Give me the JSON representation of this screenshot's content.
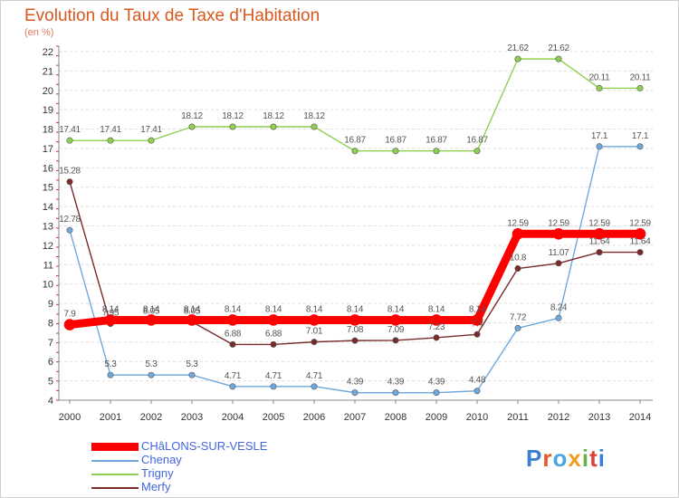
{
  "title": "Evolution du Taux de Taxe d'Habitation",
  "unit": "(en %)",
  "logo": "Proxiti",
  "chart_data": {
    "type": "line",
    "title": "Evolution du Taux de Taxe d'Habitation",
    "ylabel": "(en %)",
    "xlabel": "",
    "x": [
      2000,
      2001,
      2002,
      2003,
      2004,
      2005,
      2006,
      2007,
      2008,
      2009,
      2010,
      2011,
      2012,
      2013,
      2014
    ],
    "ylim": [
      4,
      22
    ],
    "yticks": [
      4,
      5,
      6,
      7,
      8,
      9,
      10,
      11,
      12,
      13,
      14,
      15,
      16,
      17,
      18,
      19,
      20,
      21,
      22
    ],
    "grid": "horizontal dashed",
    "legend": "bottom-left",
    "series": [
      {
        "name": "CHâLONS-SUR-VESLE",
        "color": "#ff0000",
        "values": [
          7.9,
          8.14,
          8.14,
          8.14,
          8.14,
          8.14,
          8.14,
          8.14,
          8.14,
          8.14,
          8.14,
          12.59,
          12.59,
          12.59,
          12.59
        ]
      },
      {
        "name": "Chenay",
        "color": "#6fa8dc",
        "values": [
          12.78,
          5.3,
          5.3,
          5.3,
          4.71,
          4.71,
          4.71,
          4.39,
          4.39,
          4.39,
          4.48,
          7.72,
          8.24,
          17.1,
          17.1
        ]
      },
      {
        "name": "Trigny",
        "color": "#8fd14f",
        "values": [
          17.41,
          17.41,
          17.41,
          18.12,
          18.12,
          18.12,
          18.12,
          16.87,
          16.87,
          16.87,
          16.87,
          21.62,
          21.62,
          20.11,
          20.11
        ]
      },
      {
        "name": "Merfy",
        "color": "#7b2a2a",
        "values": [
          15.28,
          7.95,
          8.05,
          8.05,
          6.88,
          6.88,
          7.01,
          7.08,
          7.09,
          7.23,
          7.4,
          10.8,
          11.07,
          11.64,
          11.64
        ]
      }
    ]
  }
}
